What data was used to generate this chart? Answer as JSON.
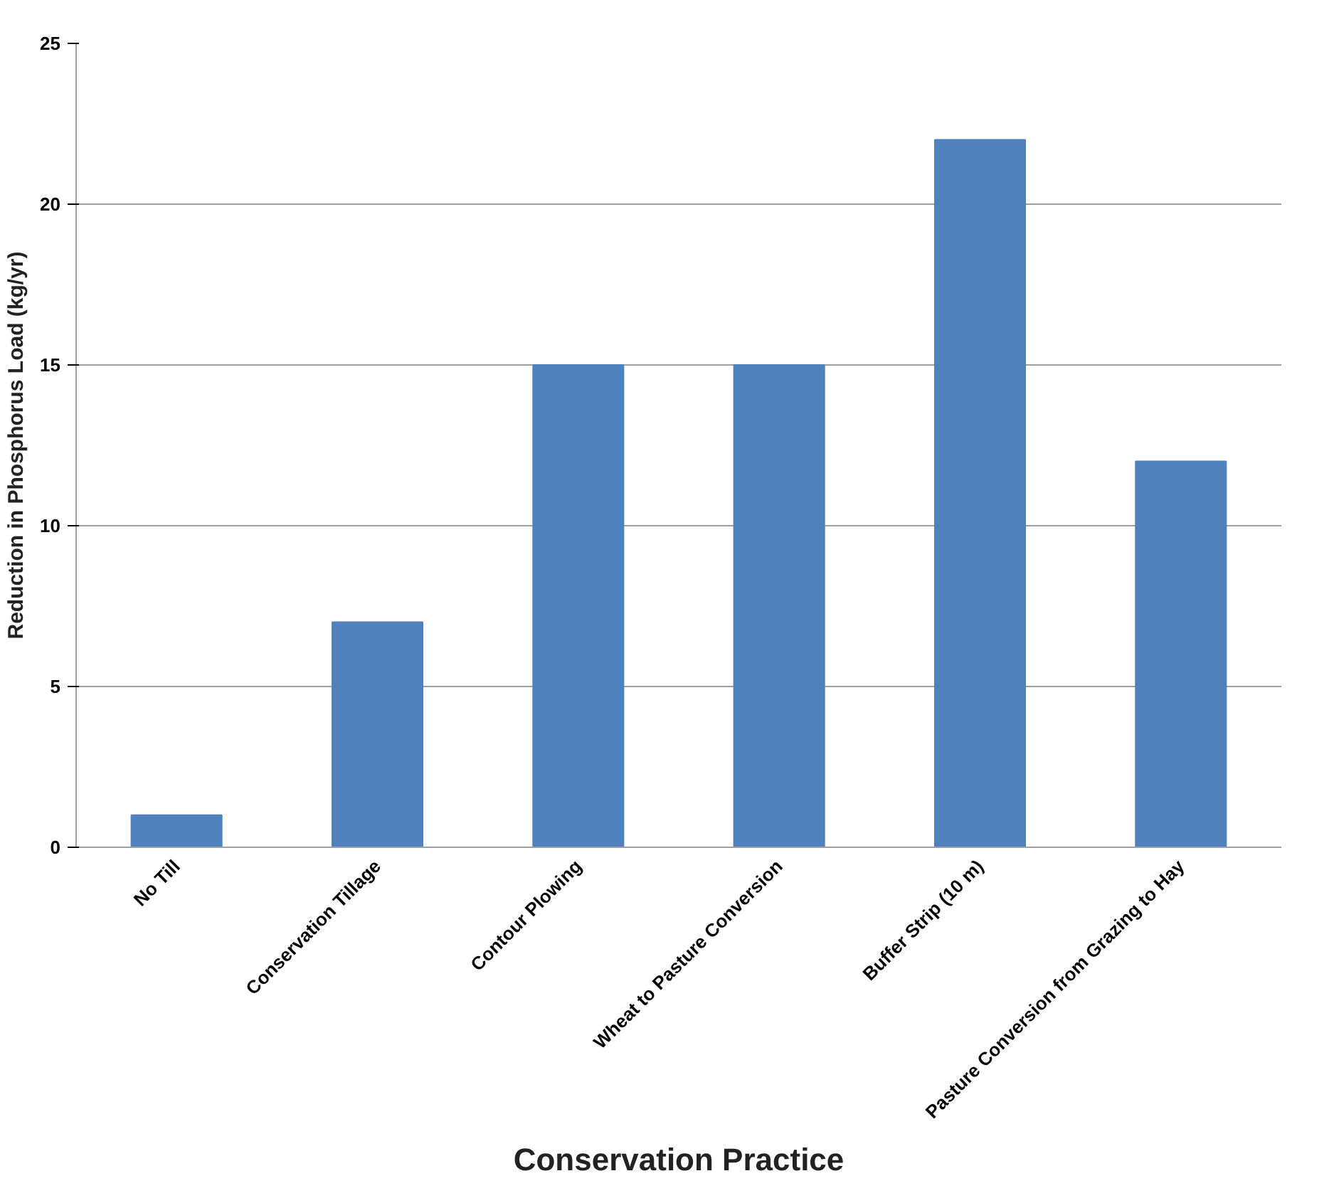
{
  "chart_data": {
    "type": "bar",
    "xlabel": "Conservation Practice",
    "ylabel": "Reduction in Phosphorus Load (kg/yr)",
    "categories": [
      "No Till",
      "Conservation Tillage",
      "Contour Plowing",
      "Wheat to Pasture Conversion",
      "Buffer Strip (10 m)",
      "Pasture Conversion from Grazing to Hay"
    ],
    "values": [
      1,
      7,
      15,
      15,
      22,
      12
    ],
    "color": "#4f81bd",
    "ylim": [
      0,
      25
    ],
    "yticks": [
      0,
      5,
      10,
      15,
      20,
      25
    ],
    "grid": "y"
  }
}
